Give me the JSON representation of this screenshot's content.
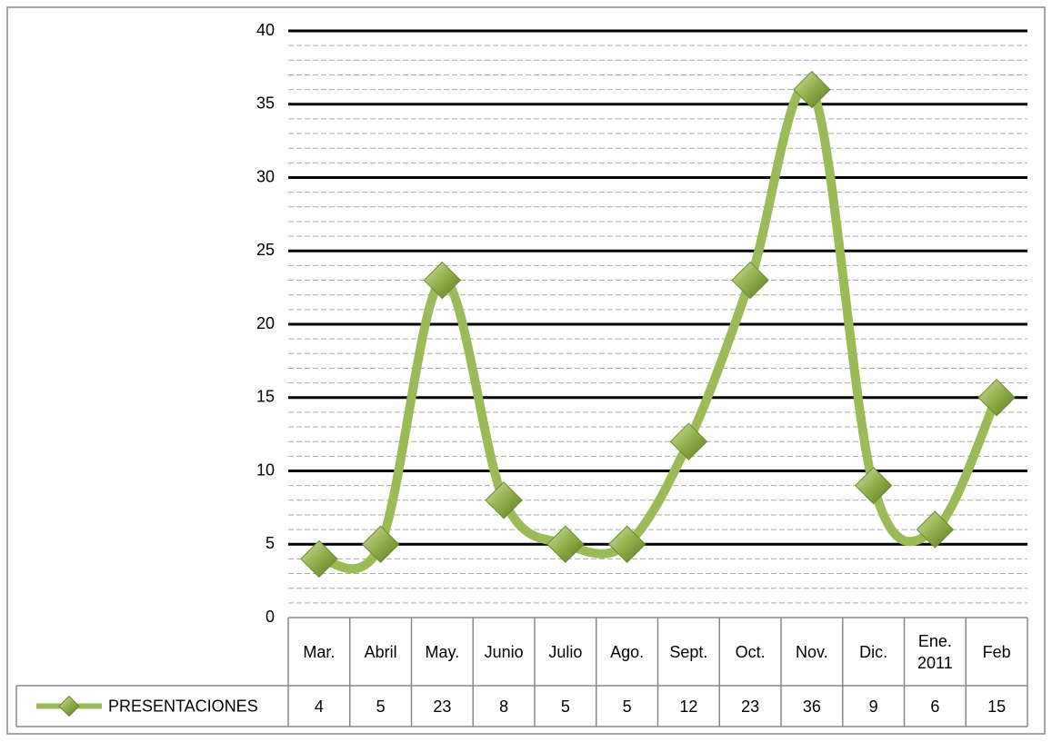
{
  "chart_data": {
    "type": "line",
    "categories": [
      "Mar.",
      "Abril",
      "May.",
      "Junio",
      "Julio",
      "Ago.",
      "Sept.",
      "Oct.",
      "Nov.",
      "Dic.",
      "Ene. 2011",
      "Feb"
    ],
    "series": [
      {
        "name": "PRESENTACIONES",
        "color": "#9bbb59",
        "values": [
          4,
          5,
          23,
          8,
          5,
          5,
          12,
          23,
          36,
          9,
          6,
          15
        ]
      }
    ],
    "ylim": [
      0,
      40
    ],
    "yticks": [
      0,
      5,
      10,
      15,
      20,
      25,
      30,
      35,
      40
    ],
    "grid": true,
    "data_table": true
  }
}
